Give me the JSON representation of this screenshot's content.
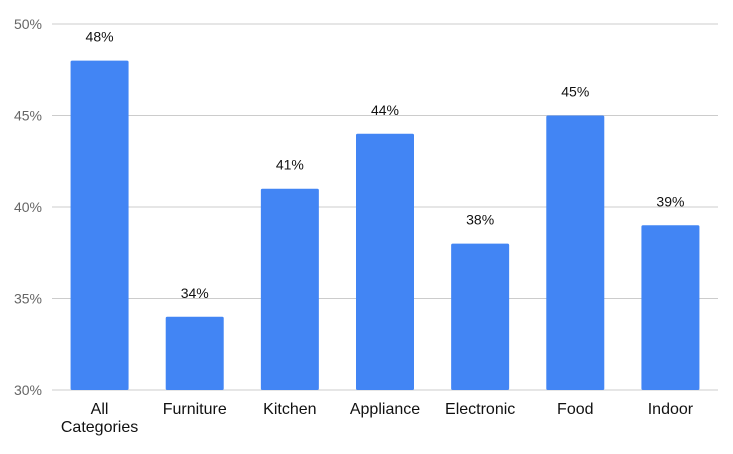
{
  "chart_data": {
    "type": "bar",
    "categories": [
      "All Categories",
      "Furniture",
      "Kitchen",
      "Appliance",
      "Electronic",
      "Food",
      "Indoor"
    ],
    "category_lines": [
      [
        "All",
        "Categories"
      ],
      [
        "Furniture"
      ],
      [
        "Kitchen"
      ],
      [
        "Appliance"
      ],
      [
        "Electronic"
      ],
      [
        "Food"
      ],
      [
        "Indoor"
      ]
    ],
    "values": [
      48,
      34,
      41,
      44,
      38,
      45,
      39
    ],
    "data_labels": [
      "48%",
      "34%",
      "41%",
      "44%",
      "38%",
      "45%",
      "39%"
    ],
    "ylim": [
      30,
      50
    ],
    "yticks": [
      30,
      35,
      40,
      45,
      50
    ],
    "ytick_labels": [
      "30%",
      "35%",
      "40%",
      "45%",
      "50%"
    ],
    "grid": true,
    "bar_color": "#4285f4",
    "title": "",
    "xlabel": "",
    "ylabel": ""
  }
}
